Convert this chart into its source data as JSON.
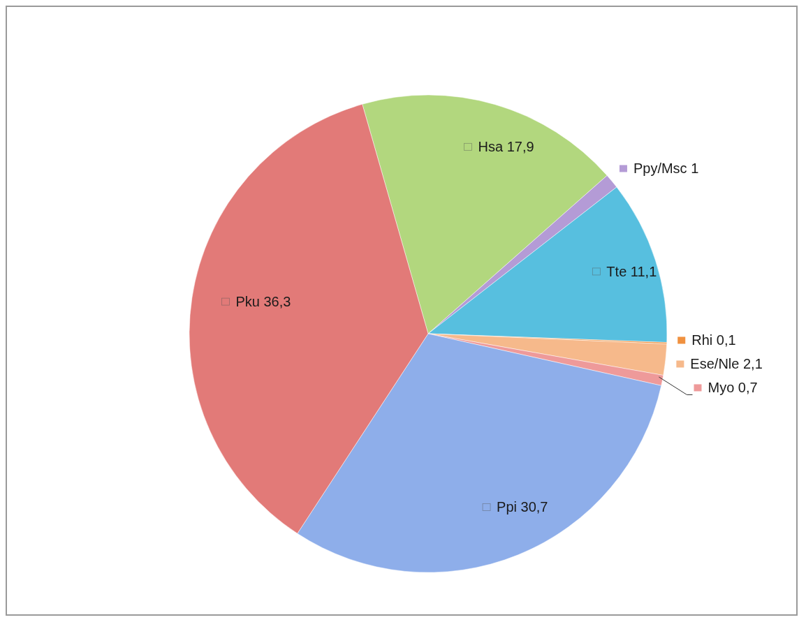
{
  "chart_data": {
    "type": "pie",
    "categories": [
      "Hsa",
      "Ppy/Msc",
      "Tte",
      "Rhi",
      "Ese/Nle",
      "Myo",
      "Ppi",
      "Pku"
    ],
    "values": [
      17.9,
      1,
      11.1,
      0.1,
      2.1,
      0.7,
      30.7,
      36.3
    ],
    "value_labels": [
      "17,9",
      "1",
      "11,1",
      "0,1",
      "2,1",
      "0,7",
      "30,7",
      "36,3"
    ],
    "colors": [
      "#b2d77e",
      "#b49bd6",
      "#57bfdf",
      "#f0913f",
      "#f6b98b",
      "#ee9a9a",
      "#8eaeea",
      "#e27a78"
    ],
    "legend": "right"
  }
}
